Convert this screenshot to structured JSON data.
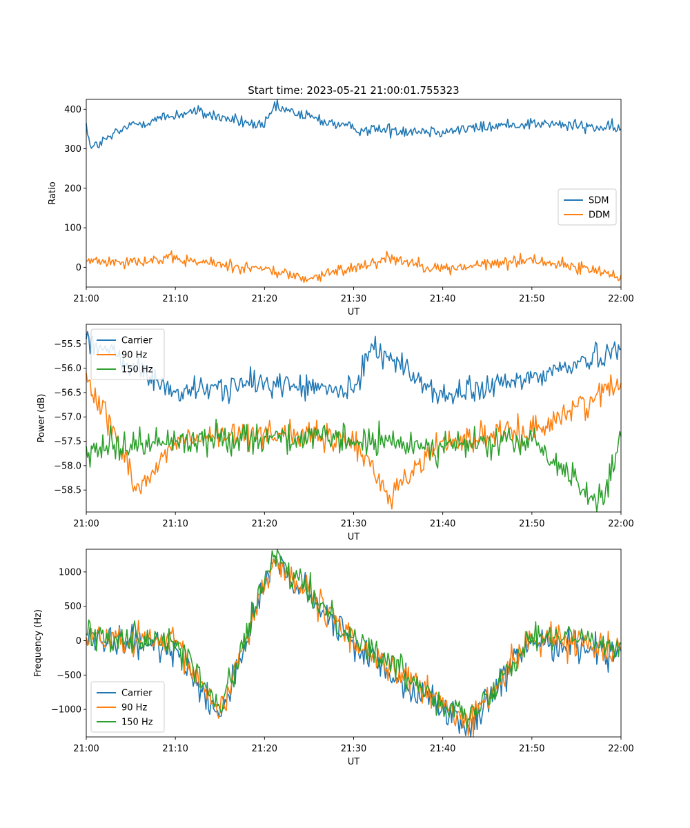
{
  "figure_title": "Start time: 2023-05-21 21:00:01.755323",
  "colors": {
    "blue": "#1f77b4",
    "orange": "#ff7f0e",
    "green": "#2ca02c"
  },
  "chart_data": [
    {
      "type": "line",
      "title": "Start time: 2023-05-21 21:00:01.755323",
      "xlabel": "UT",
      "ylabel": "Ratio",
      "xlim": [
        "21:00",
        "22:00"
      ],
      "ylim": [
        -50,
        425
      ],
      "x_ticks": [
        "21:00",
        "21:10",
        "21:20",
        "21:30",
        "21:40",
        "21:50",
        "22:00"
      ],
      "y_ticks": [
        0,
        100,
        200,
        300,
        400
      ],
      "y_tick_labels": [
        "0",
        "100",
        "200",
        "300",
        "400"
      ],
      "legend": "center-right",
      "series": [
        {
          "name": "SDM",
          "color": "#1f77b4",
          "x": [
            "21:00",
            "21:00:30",
            "21:05",
            "21:12",
            "21:20",
            "21:21",
            "21:30",
            "21:40",
            "21:50",
            "22:00"
          ],
          "values": [
            365,
            300,
            360,
            395,
            355,
            405,
            350,
            345,
            365,
            350
          ]
        },
        {
          "name": "DDM",
          "color": "#ff7f0e",
          "x": [
            "21:00",
            "21:10",
            "21:20",
            "21:25",
            "21:30",
            "21:34",
            "21:40",
            "21:50",
            "22:00"
          ],
          "values": [
            15,
            20,
            -5,
            -30,
            0,
            25,
            -5,
            20,
            -20
          ]
        }
      ]
    },
    {
      "type": "line",
      "xlabel": "UT",
      "ylabel": "Power (dB)",
      "xlim": [
        "21:00",
        "22:00"
      ],
      "ylim": [
        -58.95,
        -55.1
      ],
      "x_ticks": [
        "21:00",
        "21:10",
        "21:20",
        "21:30",
        "21:40",
        "21:50",
        "22:00"
      ],
      "y_ticks": [
        -58.5,
        -58.0,
        -57.5,
        -57.0,
        -56.5,
        -56.0,
        -55.5
      ],
      "y_tick_labels": [
        "−58.5",
        "−58.0",
        "−57.5",
        "−57.0",
        "−56.5",
        "−56.0",
        "−55.5"
      ],
      "legend": "upper-left",
      "series": [
        {
          "name": "Carrier",
          "color": "#1f77b4",
          "x": [
            "21:00",
            "21:10",
            "21:20",
            "21:30",
            "21:32",
            "21:40",
            "21:50",
            "22:00"
          ],
          "values": [
            -55.4,
            -56.5,
            -56.3,
            -56.5,
            -55.5,
            -56.6,
            -56.2,
            -55.6
          ]
        },
        {
          "name": "90 Hz",
          "color": "#ff7f0e",
          "x": [
            "21:00",
            "21:06",
            "21:10",
            "21:20",
            "21:30",
            "21:34",
            "21:40",
            "21:50",
            "22:00"
          ],
          "values": [
            -56.1,
            -58.5,
            -57.5,
            -57.3,
            -57.5,
            -58.6,
            -57.5,
            -57.3,
            -56.3
          ]
        },
        {
          "name": "150 Hz",
          "color": "#2ca02c",
          "x": [
            "21:00",
            "21:10",
            "21:20",
            "21:30",
            "21:40",
            "21:50",
            "21:58",
            "22:00"
          ],
          "values": [
            -57.6,
            -57.5,
            -57.4,
            -57.5,
            -57.6,
            -57.5,
            -58.8,
            -57.4
          ]
        }
      ]
    },
    {
      "type": "line",
      "xlabel": "UT",
      "ylabel": "Frequency (Hz)",
      "xlim": [
        "21:00",
        "22:00"
      ],
      "ylim": [
        -1400,
        1330
      ],
      "x_ticks": [
        "21:00",
        "21:10",
        "21:20",
        "21:30",
        "21:40",
        "21:50",
        "22:00"
      ],
      "y_ticks": [
        -1000,
        -500,
        0,
        500,
        1000
      ],
      "y_tick_labels": [
        "−1000",
        "−500",
        "0",
        "500",
        "1000"
      ],
      "legend": "lower-left",
      "series": [
        {
          "name": "Carrier",
          "color": "#1f77b4",
          "x": [
            "21:00",
            "21:10",
            "21:15",
            "21:21",
            "21:30",
            "21:43",
            "21:50",
            "22:00"
          ],
          "values": [
            0,
            -100,
            -1100,
            1150,
            -50,
            -1270,
            0,
            -150
          ]
        },
        {
          "name": "90 Hz",
          "color": "#ff7f0e",
          "x": [
            "21:00",
            "21:10",
            "21:15",
            "21:21",
            "21:30",
            "21:43",
            "21:50",
            "22:00"
          ],
          "values": [
            50,
            -50,
            -1050,
            1190,
            0,
            -1200,
            50,
            -100
          ]
        },
        {
          "name": "150 Hz",
          "color": "#2ca02c",
          "x": [
            "21:00",
            "21:10",
            "21:15",
            "21:21",
            "21:30",
            "21:43",
            "21:50",
            "22:00"
          ],
          "values": [
            100,
            0,
            -1000,
            1220,
            50,
            -1150,
            100,
            -50
          ]
        }
      ]
    }
  ]
}
